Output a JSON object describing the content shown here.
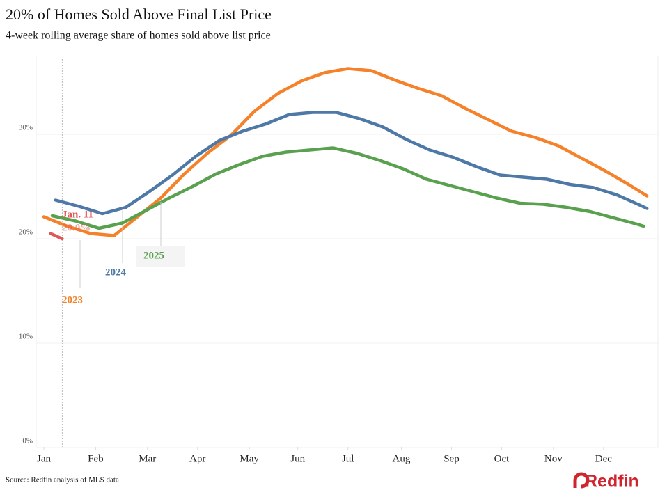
{
  "chart_data": {
    "type": "line",
    "title": "20% of Homes Sold Above Final List Price",
    "subtitle": "4-week rolling average share of homes sold above list price",
    "source": "Source: Redfin analysis of MLS data",
    "logo": "Redfin",
    "xlim": [
      -5,
      368
    ],
    "xticks": [
      {
        "value": 0,
        "label": "Jan"
      },
      {
        "value": 31,
        "label": "Feb"
      },
      {
        "value": 62,
        "label": "Mar"
      },
      {
        "value": 92,
        "label": "Apr"
      },
      {
        "value": 123,
        "label": "May"
      },
      {
        "value": 152,
        "label": "Jun"
      },
      {
        "value": 182,
        "label": "Jul"
      },
      {
        "value": 214,
        "label": "Aug"
      },
      {
        "value": 244,
        "label": "Sep"
      },
      {
        "value": 274,
        "label": "Oct"
      },
      {
        "value": 305,
        "label": "Nov"
      },
      {
        "value": 335,
        "label": "Dec"
      }
    ],
    "ylim": [
      0,
      37.5
    ],
    "yticks": [
      {
        "value": 0,
        "label": "0%"
      },
      {
        "value": 10,
        "label": "10%"
      },
      {
        "value": 20,
        "label": "20%"
      },
      {
        "value": 30,
        "label": "30%"
      }
    ],
    "grid": true,
    "series": [
      {
        "name": "2023",
        "color": "#f5822a",
        "x": [
          0,
          14,
          28,
          42,
          56,
          70,
          84,
          98,
          112,
          126,
          140,
          154,
          168,
          182,
          196,
          210,
          224,
          238,
          252,
          266,
          280,
          294,
          308,
          322,
          336,
          350,
          361
        ],
        "values": [
          22.1,
          21.2,
          20.5,
          20.3,
          22.1,
          23.9,
          26.2,
          28.2,
          29.9,
          32.2,
          33.9,
          35.1,
          35.9,
          36.3,
          36.1,
          35.2,
          34.4,
          33.7,
          32.5,
          31.4,
          30.3,
          29.7,
          28.9,
          27.7,
          26.5,
          25.2,
          24.1
        ]
      },
      {
        "name": "2024",
        "color": "#4e79a7",
        "x": [
          7,
          21,
          35,
          49,
          63,
          77,
          91,
          105,
          119,
          133,
          147,
          161,
          175,
          189,
          203,
          217,
          231,
          245,
          259,
          273,
          287,
          301,
          315,
          329,
          343,
          357,
          361
        ],
        "values": [
          23.7,
          23.1,
          22.4,
          23.0,
          24.5,
          26.1,
          27.9,
          29.4,
          30.3,
          31.0,
          31.9,
          32.1,
          32.1,
          31.5,
          30.7,
          29.5,
          28.5,
          27.8,
          26.9,
          26.1,
          25.9,
          25.7,
          25.2,
          24.9,
          24.2,
          23.2,
          22.9
        ]
      },
      {
        "name": "2025",
        "color": "#59a14f",
        "x": [
          5,
          19,
          33,
          47,
          61,
          75,
          89,
          103,
          117,
          131,
          145,
          159,
          173,
          187,
          201,
          215,
          229,
          243,
          257,
          271,
          285,
          299,
          313,
          327,
          341,
          355,
          359
        ],
        "values": [
          22.2,
          21.7,
          21.0,
          21.5,
          22.7,
          23.9,
          25.0,
          26.2,
          27.1,
          27.9,
          28.3,
          28.5,
          28.7,
          28.2,
          27.5,
          26.7,
          25.7,
          25.1,
          24.5,
          23.9,
          23.4,
          23.3,
          23.0,
          22.6,
          22.0,
          21.4,
          21.2
        ]
      },
      {
        "color": "#e15759",
        "x": [
          4,
          11
        ],
        "values": [
          20.5,
          20.0
        ],
        "value_labels": [
          null,
          "20.0%"
        ]
      }
    ],
    "annotations": [
      {
        "text": "Jan. 11",
        "x": 11
      }
    ]
  }
}
